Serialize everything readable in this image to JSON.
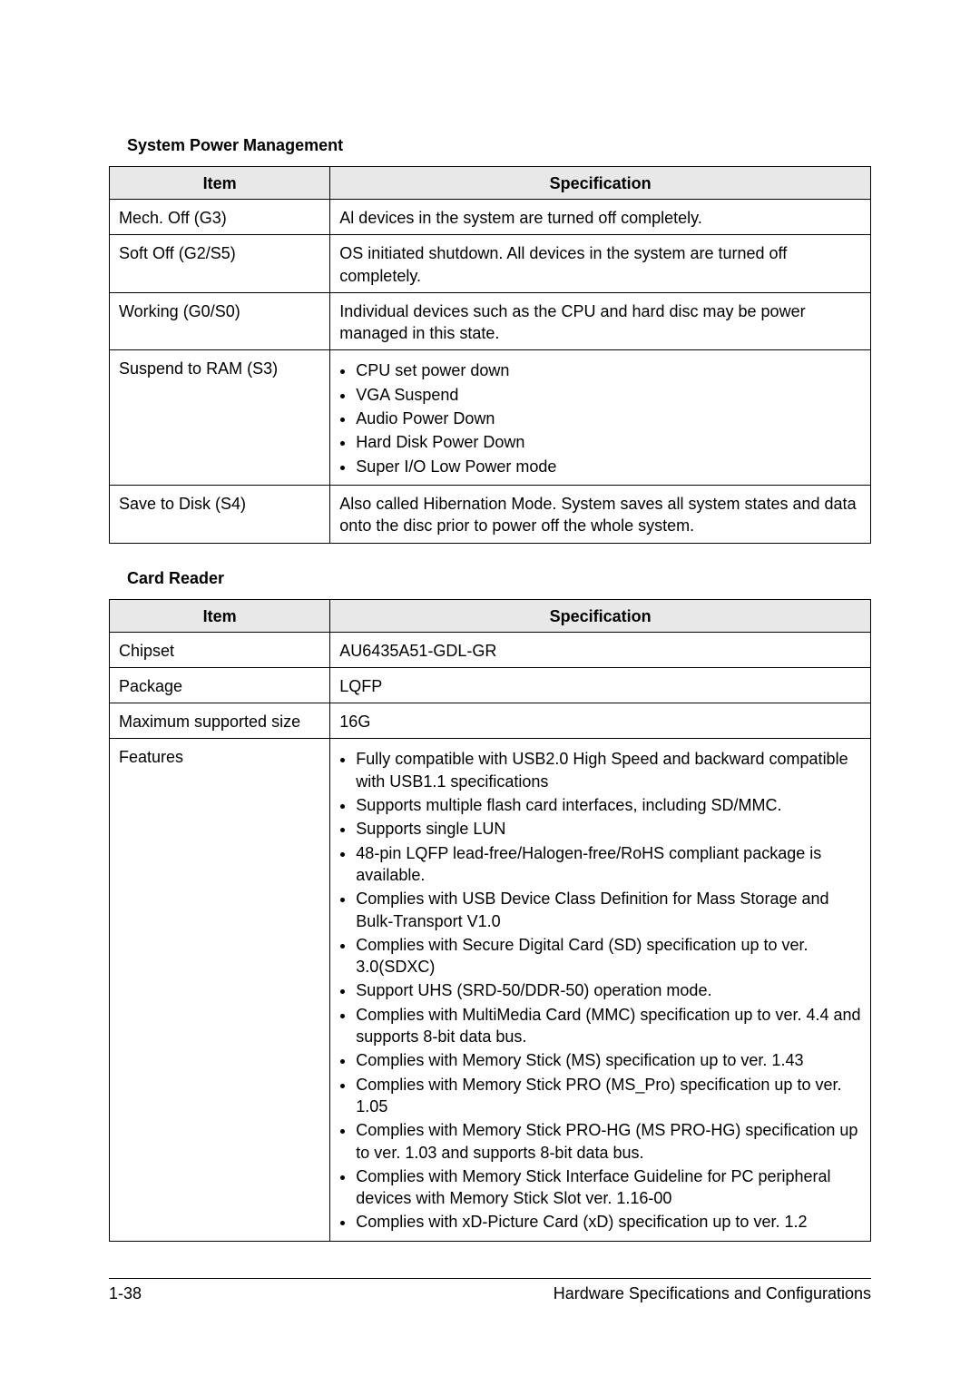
{
  "sections": [
    {
      "title": "System Power Management",
      "header": {
        "item": "Item",
        "spec": "Specification"
      },
      "rows": [
        {
          "item": "Mech. Off (G3)",
          "spec_text": "Al devices in the system are turned off completely."
        },
        {
          "item": "Soft Off (G2/S5)",
          "spec_text": "OS initiated shutdown. All devices in the system are turned off completely."
        },
        {
          "item": "Working (G0/S0)",
          "spec_text": "Individual devices such as the CPU and hard disc may be power managed in this state."
        },
        {
          "item": "Suspend to RAM (S3)",
          "spec_list": [
            "CPU set power down",
            "VGA Suspend",
            "Audio Power Down",
            "Hard Disk Power Down",
            "Super I/O Low Power mode"
          ]
        },
        {
          "item": "Save to Disk (S4)",
          "spec_text": "Also called Hibernation Mode. System saves all system states and data onto the disc prior to power off the whole system."
        }
      ]
    },
    {
      "title": "Card Reader",
      "header": {
        "item": "Item",
        "spec": "Specification"
      },
      "rows": [
        {
          "item": "Chipset",
          "spec_text": "AU6435A51-GDL-GR"
        },
        {
          "item": "Package",
          "spec_text": "LQFP"
        },
        {
          "item": "Maximum supported size",
          "spec_text": "16G"
        },
        {
          "item": "Features",
          "spec_list": [
            "Fully compatible with USB2.0 High Speed and backward compatible with USB1.1 specifications",
            "Supports multiple flash card interfaces, including SD/MMC.",
            "Supports single LUN",
            "48-pin LQFP lead-free/Halogen-free/RoHS compliant package is available.",
            "Complies with USB Device Class Definition for Mass Storage and Bulk-Transport V1.0",
            "Complies with Secure Digital Card (SD) specification up to ver. 3.0(SDXC)",
            "Support UHS (SRD-50/DDR-50) operation mode.",
            "Complies with MultiMedia Card (MMC) specification up to ver. 4.4 and supports 8-bit data bus.",
            "Complies with Memory Stick (MS) specification up to ver. 1.43",
            "Complies with Memory Stick PRO (MS_Pro) specification up to ver. 1.05",
            "Complies with Memory Stick PRO-HG (MS PRO-HG) specification up to ver. 1.03 and supports 8-bit data bus.",
            "Complies with Memory Stick Interface Guideline for PC peripheral devices with Memory Stick Slot ver. 1.16-00",
            "Complies with xD-Picture Card (xD) specification up to ver. 1.2"
          ]
        }
      ]
    }
  ],
  "footer": {
    "page": "1-38",
    "title": "Hardware Specifications and Configurations"
  }
}
